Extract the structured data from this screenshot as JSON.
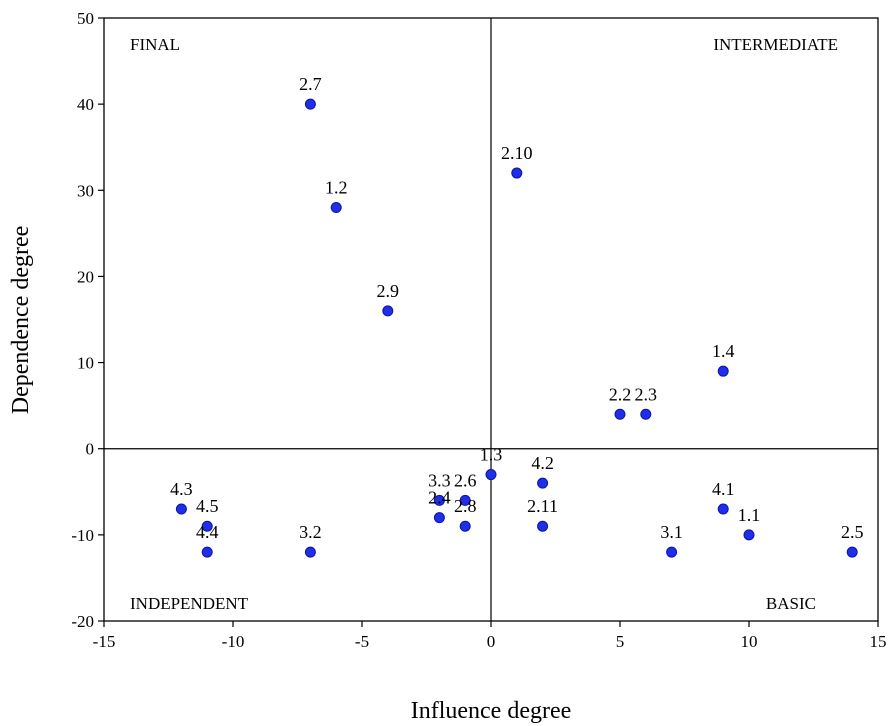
{
  "chart_data": {
    "type": "scatter",
    "xlabel": "Influence degree",
    "ylabel": "Dependence degree",
    "xlim": [
      -15,
      15
    ],
    "ylim": [
      -20,
      50
    ],
    "xticks": [
      -15,
      -10,
      -5,
      0,
      5,
      10,
      15
    ],
    "yticks": [
      -20,
      -10,
      0,
      10,
      20,
      30,
      40,
      50
    ],
    "grid": false,
    "legend": "none",
    "marker_color": "#1f2ee8",
    "reference_lines": {
      "x": 0,
      "y": 0
    },
    "quadrant_labels": [
      {
        "text": "FINAL",
        "position": "top-left"
      },
      {
        "text": "INTERMEDIATE",
        "position": "top-right"
      },
      {
        "text": "INDEPENDENT",
        "position": "bottom-left"
      },
      {
        "text": "BASIC",
        "position": "bottom-right"
      }
    ],
    "points": [
      {
        "label": "2.7",
        "x": -7,
        "y": 40
      },
      {
        "label": "1.2",
        "x": -6,
        "y": 28
      },
      {
        "label": "2.9",
        "x": -4,
        "y": 16
      },
      {
        "label": "2.10",
        "x": 1,
        "y": 32
      },
      {
        "label": "1.4",
        "x": 9,
        "y": 9
      },
      {
        "label": "2.2",
        "x": 5,
        "y": 4
      },
      {
        "label": "2.3",
        "x": 6,
        "y": 4
      },
      {
        "label": "1.3",
        "x": 0,
        "y": -3
      },
      {
        "label": "4.2",
        "x": 2,
        "y": -4
      },
      {
        "label": "3.3",
        "x": -2,
        "y": -6
      },
      {
        "label": "2.6",
        "x": -1,
        "y": -6
      },
      {
        "label": "2.4",
        "x": -2,
        "y": -8
      },
      {
        "label": "2.8",
        "x": -1,
        "y": -9
      },
      {
        "label": "2.11",
        "x": 2,
        "y": -9
      },
      {
        "label": "4.3",
        "x": -12,
        "y": -7
      },
      {
        "label": "4.5",
        "x": -11,
        "y": -9
      },
      {
        "label": "4.4",
        "x": -11,
        "y": -12
      },
      {
        "label": "3.2",
        "x": -7,
        "y": -12
      },
      {
        "label": "3.1",
        "x": 7,
        "y": -12
      },
      {
        "label": "4.1",
        "x": 9,
        "y": -7
      },
      {
        "label": "1.1",
        "x": 10,
        "y": -10
      },
      {
        "label": "2.5",
        "x": 14,
        "y": -12
      }
    ]
  }
}
